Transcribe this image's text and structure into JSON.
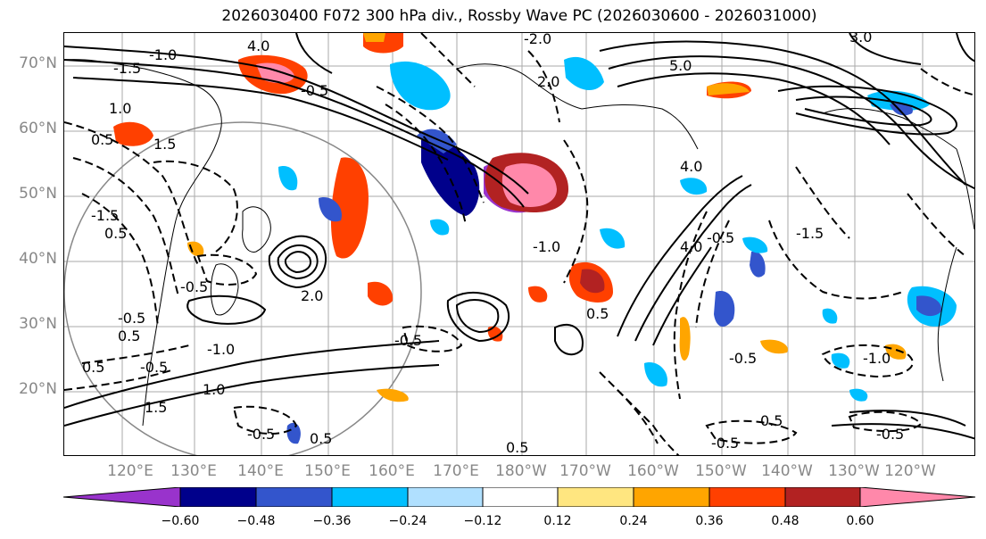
{
  "title": "2026030400 F072 300 hPa div., Rossby Wave PC (2026030600 - 2026031000)",
  "lat_labels": [
    "70°N",
    "60°N",
    "50°N",
    "40°N",
    "30°N",
    "20°N"
  ],
  "lon_labels": [
    "120°E",
    "130°E",
    "140°E",
    "150°E",
    "160°E",
    "170°E",
    "180°W",
    "170°W",
    "160°W",
    "150°W",
    "140°W",
    "130°W",
    "120°W"
  ],
  "colorbar": {
    "colors": [
      "#9933cc",
      "#00008b",
      "#3355cc",
      "#00bfff",
      "#b0e0ff",
      "#ffffff",
      "#ffe680",
      "#ffa500",
      "#ff4000",
      "#b22222",
      "#ff88aa"
    ],
    "tick_labels": [
      "−0.60",
      "−0.48",
      "−0.36",
      "−0.24",
      "−0.12",
      "0.12",
      "0.24",
      "0.36",
      "0.48",
      "0.60"
    ]
  },
  "contour_labels": [
    "4.0",
    "3.0",
    "5.0",
    "-1.0",
    "-2.0",
    "-1.5",
    "2.0",
    "-0.5",
    "0.5",
    "1.0",
    "1.5",
    "-1.5",
    "0.5",
    "-0.5",
    "-1.0",
    "-0.5",
    "0.5",
    "0.5",
    "-0.5",
    "1.0",
    "4.0",
    "-0.5",
    "0.5",
    "-1.0",
    "-1.5",
    "1.5",
    "-0.5",
    "0.5",
    "2.0",
    "-0.5",
    "4.0",
    "-1.0",
    "0.5",
    "-0.5",
    "0.5",
    "-0.5",
    "-0.5"
  ]
}
